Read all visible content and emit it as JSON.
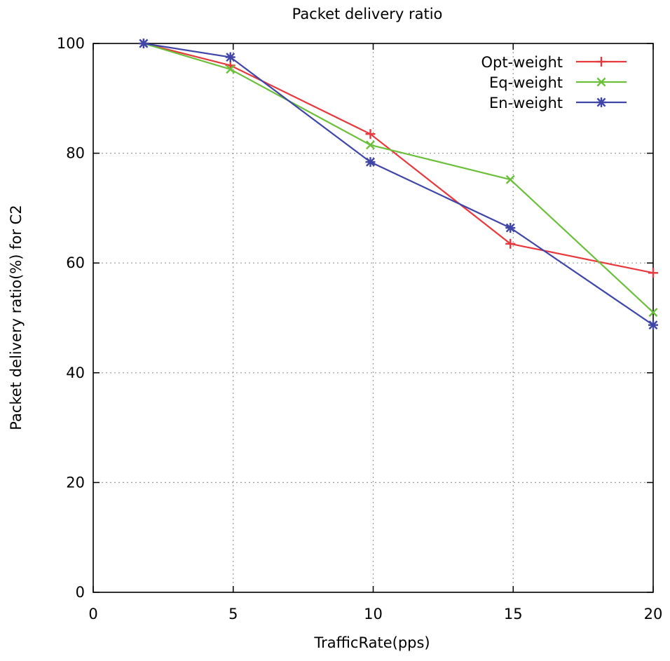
{
  "chart_data": {
    "type": "line",
    "title": "Packet delivery ratio",
    "xlabel": "TrafficRate(pps)",
    "ylabel": "Packet delivery ratio(%) for C2",
    "xlim": [
      0,
      20
    ],
    "ylim": [
      0,
      100
    ],
    "xticks": [
      0,
      5,
      10,
      15,
      20
    ],
    "yticks": [
      0,
      20,
      40,
      60,
      80,
      100
    ],
    "x_tick_labels": [
      "0",
      "5",
      "10",
      "15",
      "20"
    ],
    "y_tick_labels": [
      "0",
      "20",
      "40",
      "60",
      "80",
      "100"
    ],
    "grid": true,
    "legend_position": "top-right",
    "x": [
      1.8,
      4.9,
      9.9,
      14.9,
      20
    ],
    "series": [
      {
        "name": "Opt-weight",
        "color": "#e8383d",
        "marker": "plus",
        "values": [
          100,
          96,
          83.5,
          63.5,
          58.2
        ]
      },
      {
        "name": "Eq-weight",
        "color": "#6cbf3a",
        "marker": "x",
        "values": [
          100,
          95.3,
          81.5,
          75.2,
          51
        ]
      },
      {
        "name": "En-weight",
        "color": "#3f46a8",
        "marker": "star",
        "values": [
          100,
          97.5,
          78.4,
          66.4,
          48.7
        ]
      }
    ]
  }
}
